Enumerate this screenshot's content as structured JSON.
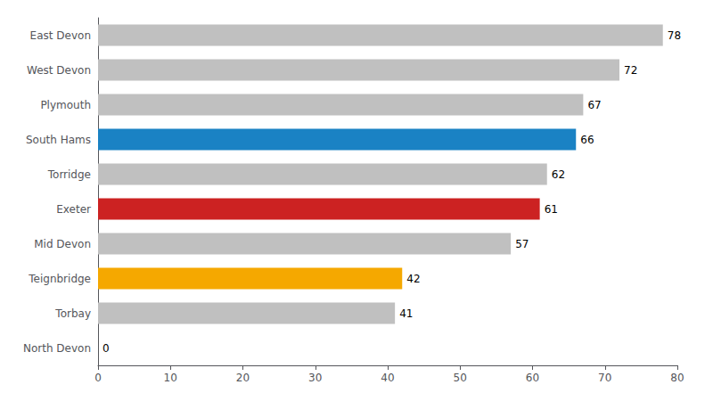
{
  "chart_data": {
    "type": "bar",
    "orientation": "horizontal",
    "categories": [
      "North Devon",
      "Torbay",
      "Teignbridge",
      "Mid Devon",
      "Exeter",
      "Torridge",
      "South Hams",
      "Plymouth",
      "West Devon",
      "East Devon"
    ],
    "values": [
      0,
      41,
      42,
      57,
      61,
      62,
      66,
      67,
      72,
      78
    ],
    "colors": [
      "#c0c0c0",
      "#c0c0c0",
      "#f5a800",
      "#c0c0c0",
      "#cc2222",
      "#c0c0c0",
      "#1a82c4",
      "#c0c0c0",
      "#c0c0c0",
      "#c0c0c0"
    ],
    "xlim": [
      0,
      80
    ],
    "xticks": [
      0,
      10,
      20,
      30,
      40,
      50,
      60,
      70,
      80
    ],
    "grid": false,
    "data_labels": true
  }
}
